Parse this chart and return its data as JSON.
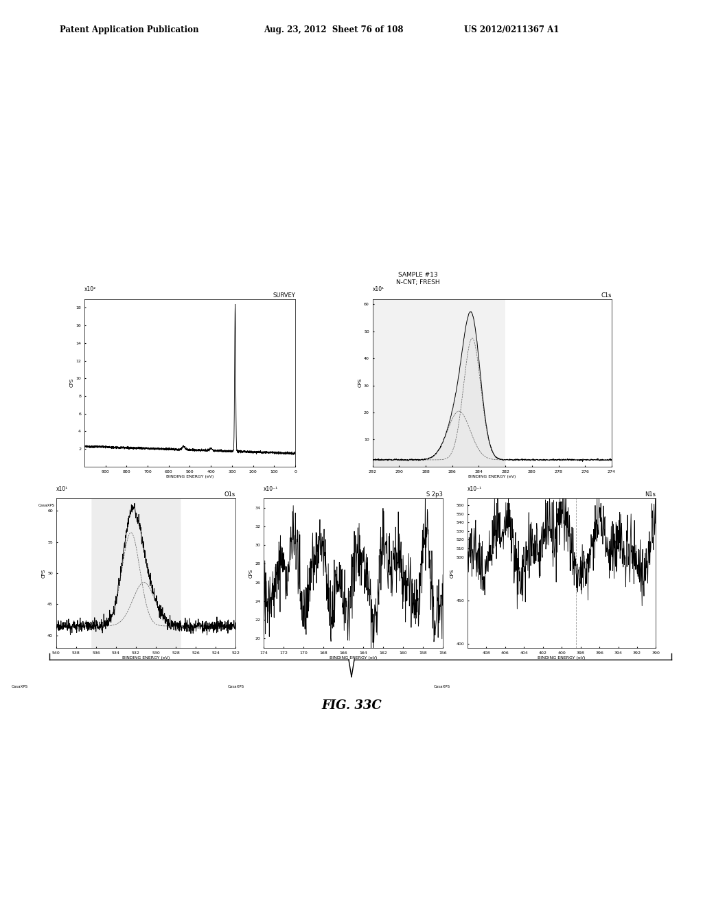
{
  "header_left": "Patent Application Publication",
  "header_mid": "Aug. 23, 2012  Sheet 76 of 108",
  "header_right": "US 2012/0211367 A1",
  "sample_label": "SAMPLE #13\nN-CNT; FRESH",
  "fig_label": "FIG. 33C",
  "bg_color": "#ffffff",
  "line_color": "#000000",
  "shade_color": "#bbbbbb"
}
